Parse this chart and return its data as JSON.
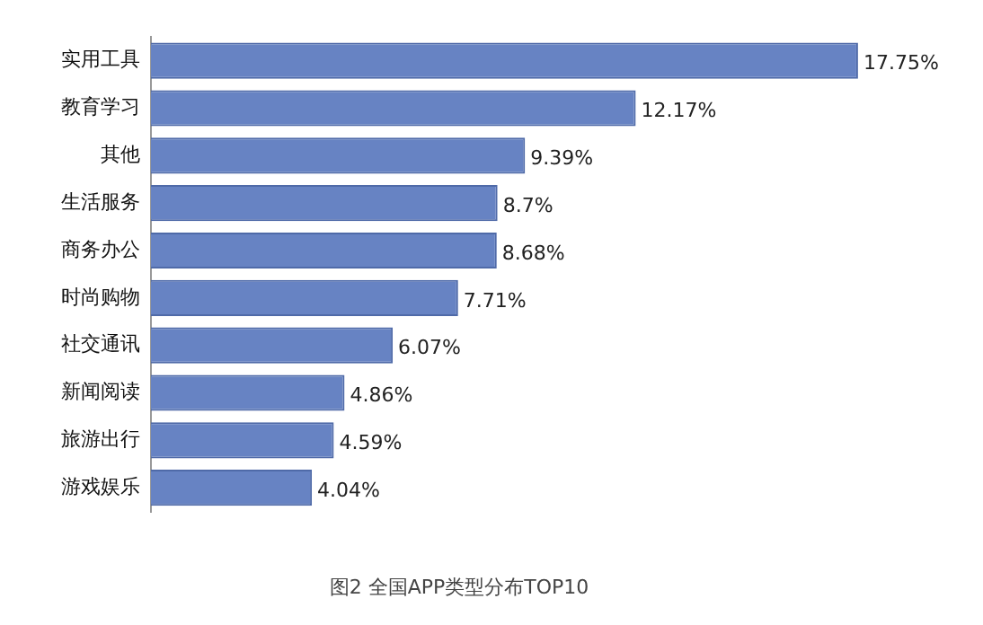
{
  "chart_data": {
    "type": "bar",
    "orientation": "horizontal",
    "title": "图2 全国APP类型分布TOP10",
    "categories": [
      "实用工具",
      "教育学习",
      "其他",
      "生活服务",
      "商务办公",
      "时尚购物",
      "社交通讯",
      "新闻阅读",
      "旅游出行",
      "游戏娱乐"
    ],
    "values": [
      17.75,
      12.17,
      9.39,
      8.7,
      8.68,
      7.71,
      6.07,
      4.86,
      4.59,
      4.04
    ],
    "value_labels": [
      "17.75%",
      "12.17%",
      "9.39%",
      "8.7%",
      "8.68%",
      "7.71%",
      "6.07%",
      "4.86%",
      "4.59%",
      "4.04%"
    ],
    "color": "#6783c3",
    "tick_labels": "y",
    "legend": false
  }
}
